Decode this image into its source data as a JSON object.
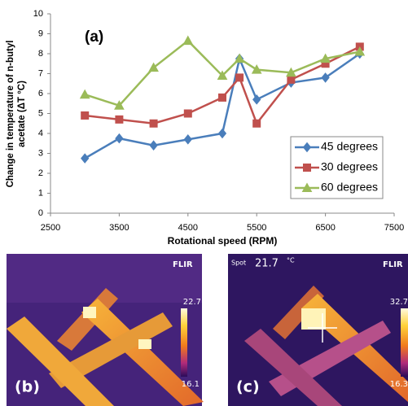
{
  "chart_data": {
    "type": "line",
    "annotation": "(a)",
    "y_label": [
      "Change in temperature of n-butyl",
      "acetate (ΔT °C)"
    ],
    "x_label": "Rotational speed (RPM)",
    "x": [
      3000,
      3500,
      4000,
      4500,
      5000,
      5250,
      5500,
      6000,
      6500,
      7000
    ],
    "series": [
      {
        "name": "45 degrees",
        "color": "#4a7ebb",
        "marker": "diamond",
        "values": [
          2.75,
          3.75,
          3.4,
          3.7,
          4.0,
          7.75,
          5.7,
          6.55,
          6.8,
          8.0
        ]
      },
      {
        "name": "30 degrees",
        "color": "#c0504d",
        "marker": "square",
        "values": [
          4.9,
          4.7,
          4.5,
          5.0,
          5.8,
          6.8,
          4.5,
          6.7,
          7.5,
          8.35
        ]
      },
      {
        "name": "60 degrees",
        "color": "#9bbb59",
        "marker": "triangle",
        "values": [
          5.95,
          5.4,
          7.3,
          8.65,
          6.9,
          7.75,
          7.2,
          7.05,
          7.75,
          8.1
        ]
      }
    ],
    "xlim": [
      2500,
      7500
    ],
    "xticks": [
      2500,
      3500,
      4500,
      5500,
      6500,
      7500
    ],
    "ylim": [
      0,
      10
    ],
    "yticks": [
      0,
      1,
      2,
      3,
      4,
      5,
      6,
      7,
      8,
      9,
      10
    ],
    "legend": "lower-right"
  },
  "panels": [
    {
      "logo": "FLIR",
      "scale_max": "22.7",
      "scale_min": "16.1",
      "label": "(b)"
    },
    {
      "spot": "Spot",
      "reading": "21.7",
      "unit": "°C",
      "logo": "FLIR",
      "scale_max": "32.7",
      "scale_min": "16.3",
      "label": "(c)"
    }
  ]
}
